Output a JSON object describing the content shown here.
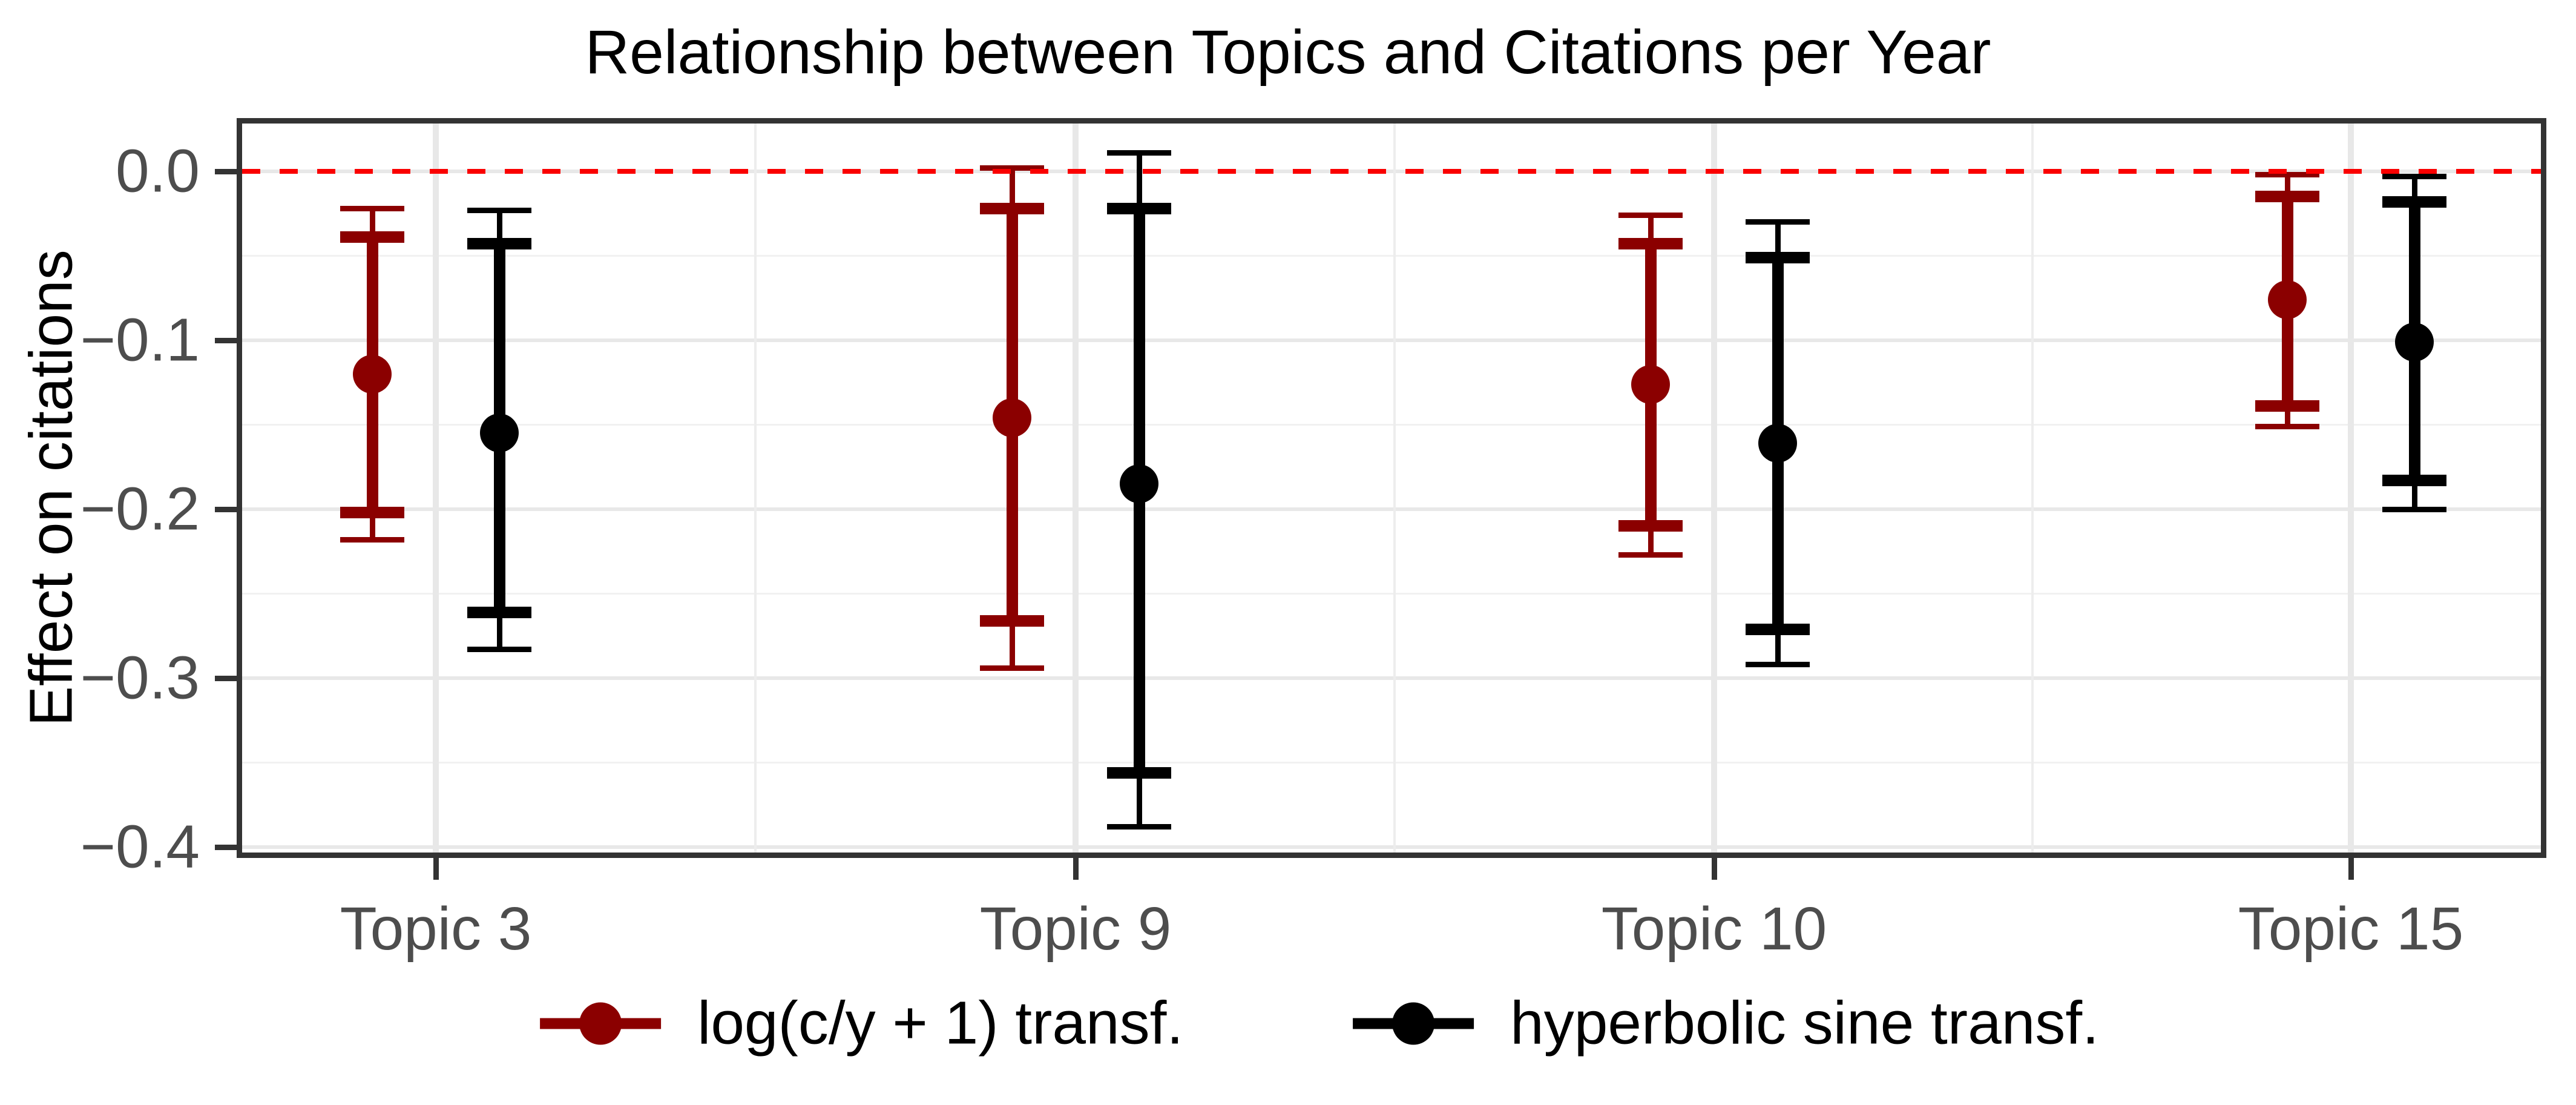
{
  "title": "Relationship between Topics and Citations per Year",
  "y_axis_title": "Effect on citations",
  "colors": {
    "series_log": "#8B0000",
    "series_hyperbolic": "#000000",
    "zero_line": "#FA0000",
    "grid_major": "#E8E8E8",
    "grid_minor": "#F1F1F1",
    "grid_minor_v": "#EDEDED",
    "axis_text": "#4D4D4D",
    "panel_border": "#333333",
    "title_text": "#000000"
  },
  "legend": {
    "items": [
      {
        "label": "log(c/y + 1) transf.",
        "color": "#8B0000"
      },
      {
        "label": "hyperbolic sine transf.",
        "color": "#000000"
      }
    ]
  },
  "chart_data": {
    "type": "pointrange",
    "title": "Relationship between Topics and Citations per Year",
    "xlabel": "",
    "ylabel": "Effect on citations",
    "categories": [
      "Topic 3",
      "Topic 9",
      "Topic 10",
      "Topic 15"
    ],
    "y_ticks": [
      {
        "value": 0.0,
        "label": "0.0"
      },
      {
        "value": -0.1,
        "label": "−0.1"
      },
      {
        "value": -0.2,
        "label": "−0.2"
      },
      {
        "value": -0.3,
        "label": "−0.3"
      },
      {
        "value": -0.4,
        "label": "−0.4"
      }
    ],
    "y_minor_ticks": [
      -0.05,
      -0.15,
      -0.25,
      -0.35
    ],
    "ylim": [
      -0.407,
      0.032
    ],
    "zero_reference_line": 0.0,
    "grid": true,
    "legend_position": "bottom",
    "series": [
      {
        "name": "log(c/y + 1) transf.",
        "color": "#8B0000",
        "points": [
          {
            "category": "Topic 3",
            "estimate": -0.12,
            "inner_high": -0.039,
            "inner_low": -0.202,
            "outer_high": -0.022,
            "outer_low": -0.218
          },
          {
            "category": "Topic 9",
            "estimate": -0.146,
            "inner_high": -0.022,
            "inner_low": -0.266,
            "outer_high": 0.002,
            "outer_low": -0.294
          },
          {
            "category": "Topic 10",
            "estimate": -0.126,
            "inner_high": -0.043,
            "inner_low": -0.21,
            "outer_high": -0.026,
            "outer_low": -0.227
          },
          {
            "category": "Topic 15",
            "estimate": -0.076,
            "inner_high": -0.015,
            "inner_low": -0.139,
            "outer_high": -0.002,
            "outer_low": -0.151
          }
        ]
      },
      {
        "name": "hyperbolic sine transf.",
        "color": "#000000",
        "points": [
          {
            "category": "Topic 3",
            "estimate": -0.155,
            "inner_high": -0.043,
            "inner_low": -0.261,
            "outer_high": -0.023,
            "outer_low": -0.283
          },
          {
            "category": "Topic 9",
            "estimate": -0.185,
            "inner_high": -0.022,
            "inner_low": -0.356,
            "outer_high": 0.011,
            "outer_low": -0.388
          },
          {
            "category": "Topic 10",
            "estimate": -0.161,
            "inner_high": -0.051,
            "inner_low": -0.271,
            "outer_high": -0.03,
            "outer_low": -0.292
          },
          {
            "category": "Topic 15",
            "estimate": -0.101,
            "inner_high": -0.018,
            "inner_low": -0.183,
            "outer_high": -0.003,
            "outer_low": -0.2
          }
        ]
      }
    ]
  }
}
